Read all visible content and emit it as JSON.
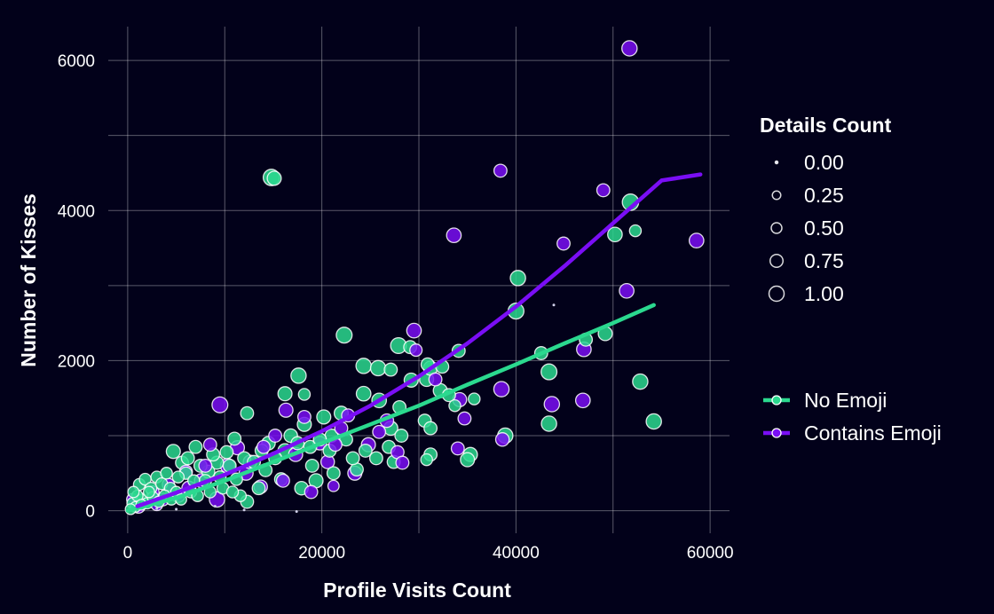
{
  "chart_data": {
    "type": "scatter",
    "xlabel": "Profile Visits Count",
    "ylabel": "Number of Kisses",
    "xlim": [
      -2000,
      62000
    ],
    "ylim": [
      -300,
      6450
    ],
    "x_ticks": [
      0,
      20000,
      40000,
      60000
    ],
    "x_tick_labels": [
      "0",
      "20000",
      "40000",
      "60000"
    ],
    "y_ticks": [
      0,
      2000,
      4000,
      6000
    ],
    "y_tick_labels": [
      "0",
      "2000",
      "4000",
      "6000"
    ],
    "x_minor_ticks": [
      10000,
      30000,
      50000
    ],
    "y_minor_ticks": [
      1000,
      3000,
      5000
    ],
    "grid": true,
    "background": "#02011a",
    "size_legend": {
      "title": "Details Count",
      "entries": [
        {
          "label": "0.00",
          "value": 0.0
        },
        {
          "label": "0.25",
          "value": 0.25
        },
        {
          "label": "0.50",
          "value": 0.5
        },
        {
          "label": "0.75",
          "value": 0.75
        },
        {
          "label": "1.00",
          "value": 1.0
        }
      ]
    },
    "legend_placement": "right",
    "series": [
      {
        "name": "No Emoji",
        "color": "#2bd98f",
        "trend": [
          [
            0,
            0
          ],
          [
            5000,
            170
          ],
          [
            10000,
            400
          ],
          [
            15000,
            650
          ],
          [
            20000,
            900
          ],
          [
            25000,
            1150
          ],
          [
            30000,
            1400
          ],
          [
            35000,
            1680
          ],
          [
            40000,
            1950
          ],
          [
            45000,
            2230
          ],
          [
            50000,
            2500
          ],
          [
            54200,
            2740
          ]
        ],
        "points": [
          [
            14800,
            4440,
            0.8
          ],
          [
            15100,
            4430,
            0.6
          ],
          [
            51800,
            4110,
            0.8
          ],
          [
            52300,
            3730,
            0.4
          ],
          [
            50200,
            3680,
            0.65
          ],
          [
            40200,
            3100,
            0.7
          ],
          [
            40000,
            2660,
            0.75
          ],
          [
            49200,
            2360,
            0.6
          ],
          [
            47200,
            2280,
            0.5
          ],
          [
            42600,
            2100,
            0.5
          ],
          [
            43400,
            1850,
            0.75
          ],
          [
            52800,
            1720,
            0.7
          ],
          [
            54200,
            1190,
            0.7
          ],
          [
            43400,
            1160,
            0.7
          ],
          [
            38900,
            1000,
            0.7
          ],
          [
            35300,
            750,
            0.6
          ],
          [
            35000,
            680,
            0.6
          ],
          [
            31200,
            750,
            0.5
          ],
          [
            30800,
            680,
            0.4
          ],
          [
            22300,
            2340,
            0.75
          ],
          [
            27900,
            2200,
            0.75
          ],
          [
            29100,
            2180,
            0.5
          ],
          [
            34100,
            2130,
            0.5
          ],
          [
            24300,
            1930,
            0.7
          ],
          [
            25800,
            1900,
            0.7
          ],
          [
            27100,
            1880,
            0.5
          ],
          [
            29200,
            1740,
            0.6
          ],
          [
            30800,
            1750,
            0.6
          ],
          [
            31200,
            1900,
            0.6
          ],
          [
            32400,
            1920,
            0.5
          ],
          [
            30900,
            1950,
            0.5
          ],
          [
            32200,
            1600,
            0.6
          ],
          [
            33100,
            1540,
            0.5
          ],
          [
            33700,
            1400,
            0.4
          ],
          [
            35700,
            1490,
            0.4
          ],
          [
            17600,
            1800,
            0.7
          ],
          [
            16200,
            1560,
            0.6
          ],
          [
            18200,
            1550,
            0.4
          ],
          [
            24300,
            1560,
            0.65
          ],
          [
            25900,
            1470,
            0.65
          ],
          [
            20200,
            1250,
            0.6
          ],
          [
            22000,
            1300,
            0.6
          ],
          [
            28000,
            1380,
            0.5
          ],
          [
            30600,
            1200,
            0.5
          ],
          [
            31200,
            1100,
            0.5
          ],
          [
            27100,
            1100,
            0.6
          ],
          [
            28200,
            1000,
            0.5
          ],
          [
            12300,
            1300,
            0.5
          ],
          [
            11000,
            960,
            0.5
          ],
          [
            7000,
            850,
            0.5
          ],
          [
            4700,
            790,
            0.6
          ],
          [
            5600,
            640,
            0.5
          ],
          [
            6200,
            700,
            0.5
          ],
          [
            10200,
            780,
            0.5
          ],
          [
            9200,
            640,
            0.5
          ],
          [
            8300,
            520,
            0.5
          ],
          [
            16200,
            800,
            0.6
          ],
          [
            18200,
            1150,
            0.6
          ],
          [
            21000,
            1000,
            0.5
          ],
          [
            19400,
            400,
            0.6
          ],
          [
            17900,
            300,
            0.55
          ],
          [
            15800,
            420,
            0.5
          ],
          [
            13500,
            300,
            0.5
          ],
          [
            12300,
            120,
            0.5
          ],
          [
            11600,
            200,
            0.4
          ],
          [
            14200,
            540,
            0.5
          ],
          [
            19000,
            600,
            0.5
          ],
          [
            21200,
            500,
            0.5
          ],
          [
            23600,
            550,
            0.5
          ],
          [
            24500,
            800,
            0.5
          ],
          [
            25600,
            700,
            0.5
          ],
          [
            26900,
            850,
            0.5
          ],
          [
            27400,
            650,
            0.5
          ],
          [
            1200,
            350,
            0.4
          ],
          [
            1800,
            420,
            0.4
          ],
          [
            2400,
            300,
            0.4
          ],
          [
            3000,
            450,
            0.4
          ],
          [
            3500,
            360,
            0.4
          ],
          [
            4000,
            500,
            0.4
          ],
          [
            4400,
            300,
            0.4
          ],
          [
            5200,
            450,
            0.4
          ],
          [
            6000,
            500,
            0.45
          ],
          [
            6800,
            400,
            0.4
          ],
          [
            7500,
            600,
            0.5
          ],
          [
            8000,
            400,
            0.45
          ],
          [
            8800,
            750,
            0.5
          ],
          [
            9500,
            450,
            0.45
          ],
          [
            10500,
            600,
            0.5
          ],
          [
            11200,
            420,
            0.45
          ],
          [
            12000,
            700,
            0.5
          ],
          [
            13000,
            650,
            0.5
          ],
          [
            13800,
            800,
            0.5
          ],
          [
            14500,
            900,
            0.55
          ],
          [
            15200,
            700,
            0.5
          ],
          [
            16800,
            1000,
            0.55
          ],
          [
            17500,
            900,
            0.5
          ],
          [
            18800,
            850,
            0.5
          ],
          [
            19800,
            950,
            0.5
          ],
          [
            20800,
            800,
            0.5
          ],
          [
            22500,
            950,
            0.5
          ],
          [
            23200,
            700,
            0.5
          ],
          [
            500,
            100,
            0.35
          ],
          [
            800,
            50,
            0.3
          ],
          [
            1500,
            150,
            0.35
          ],
          [
            2000,
            100,
            0.35
          ],
          [
            2600,
            180,
            0.35
          ],
          [
            3200,
            120,
            0.35
          ],
          [
            3800,
            200,
            0.35
          ],
          [
            4500,
            150,
            0.35
          ],
          [
            5000,
            250,
            0.35
          ],
          [
            5500,
            150,
            0.35
          ],
          [
            6500,
            250,
            0.4
          ],
          [
            7200,
            200,
            0.4
          ],
          [
            8500,
            250,
            0.4
          ],
          [
            9800,
            300,
            0.4
          ],
          [
            10800,
            250,
            0.4
          ],
          [
            300,
            20,
            0.3
          ],
          [
            1000,
            200,
            0.35
          ],
          [
            2200,
            250,
            0.35
          ],
          [
            1400,
            80,
            0.3
          ],
          [
            600,
            250,
            0.35
          ],
          [
            43900,
            2740,
            0.05
          ],
          [
            17400,
            -10,
            0.05
          ],
          [
            12000,
            10,
            0.05
          ],
          [
            9000,
            60,
            0.05
          ],
          [
            5000,
            20,
            0.05
          ],
          [
            3000,
            30,
            0.05
          ]
        ]
      },
      {
        "name": "Contains Emoji",
        "color": "#7a0ef5",
        "trend": [
          [
            1000,
            60
          ],
          [
            5000,
            240
          ],
          [
            10000,
            480
          ],
          [
            15000,
            760
          ],
          [
            20000,
            1060
          ],
          [
            25000,
            1400
          ],
          [
            30000,
            1790
          ],
          [
            35000,
            2230
          ],
          [
            40000,
            2720
          ],
          [
            45000,
            3260
          ],
          [
            50000,
            3830
          ],
          [
            55000,
            4400
          ],
          [
            59000,
            4480
          ]
        ],
        "points": [
          [
            51700,
            6160,
            0.7
          ],
          [
            38400,
            4530,
            0.5
          ],
          [
            49000,
            4270,
            0.5
          ],
          [
            33600,
            3670,
            0.65
          ],
          [
            44900,
            3560,
            0.5
          ],
          [
            58600,
            3600,
            0.65
          ],
          [
            51400,
            2930,
            0.65
          ],
          [
            47000,
            2150,
            0.65
          ],
          [
            29500,
            2400,
            0.65
          ],
          [
            29700,
            2140,
            0.45
          ],
          [
            38500,
            1620,
            0.7
          ],
          [
            34200,
            1480,
            0.6
          ],
          [
            34700,
            1230,
            0.5
          ],
          [
            43700,
            1420,
            0.7
          ],
          [
            46900,
            1470,
            0.65
          ],
          [
            38600,
            950,
            0.55
          ],
          [
            34000,
            830,
            0.5
          ],
          [
            31700,
            1750,
            0.5
          ],
          [
            9500,
            1410,
            0.75
          ],
          [
            16300,
            1340,
            0.6
          ],
          [
            22700,
            1270,
            0.5
          ],
          [
            26700,
            1200,
            0.55
          ],
          [
            27800,
            780,
            0.5
          ],
          [
            28300,
            640,
            0.5
          ],
          [
            23400,
            500,
            0.6
          ],
          [
            18900,
            250,
            0.5
          ],
          [
            21200,
            330,
            0.35
          ],
          [
            16000,
            400,
            0.5
          ],
          [
            13700,
            320,
            0.55
          ],
          [
            9200,
            150,
            0.7
          ],
          [
            1100,
            60,
            0.6
          ],
          [
            11300,
            840,
            0.6
          ],
          [
            8500,
            880,
            0.5
          ],
          [
            10300,
            600,
            0.65
          ],
          [
            12200,
            500,
            0.6
          ],
          [
            14000,
            850,
            0.5
          ],
          [
            6300,
            300,
            0.6
          ],
          [
            7600,
            400,
            0.6
          ],
          [
            5200,
            200,
            0.55
          ],
          [
            3600,
            150,
            0.5
          ],
          [
            17300,
            750,
            0.6
          ],
          [
            19800,
            900,
            0.55
          ],
          [
            20600,
            650,
            0.55
          ],
          [
            24800,
            880,
            0.6
          ],
          [
            25900,
            1050,
            0.5
          ],
          [
            22000,
            1100,
            0.5
          ],
          [
            15200,
            1000,
            0.5
          ],
          [
            12600,
            650,
            0.55
          ],
          [
            2600,
            250,
            0.45
          ],
          [
            4200,
            350,
            0.45
          ],
          [
            6000,
            520,
            0.5
          ],
          [
            8000,
            600,
            0.5
          ],
          [
            3000,
            80,
            0.4
          ],
          [
            500,
            150,
            0.4
          ],
          [
            18200,
            1250,
            0.5
          ],
          [
            21400,
            880,
            0.5
          ]
        ]
      }
    ]
  }
}
